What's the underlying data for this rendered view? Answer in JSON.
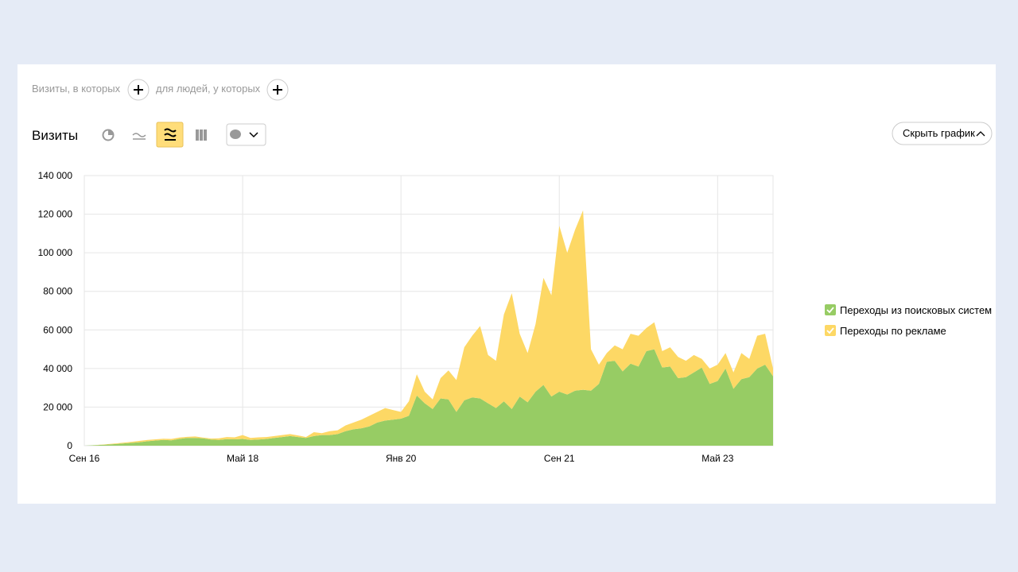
{
  "filters": {
    "visits_condition": "Визиты, в которых",
    "people_condition": "для людей, у которых"
  },
  "toolbar": {
    "title": "Визиты",
    "hide_button": "Скрыть график"
  },
  "chart_data": {
    "type": "stacked_area",
    "categories": [
      "Сен 16",
      null,
      null,
      null,
      null,
      null,
      null,
      null,
      null,
      null,
      null,
      null,
      null,
      null,
      null,
      null,
      null,
      null,
      null,
      null,
      "Май 18",
      null,
      null,
      null,
      null,
      null,
      null,
      null,
      null,
      null,
      null,
      null,
      null,
      null,
      null,
      null,
      null,
      null,
      null,
      null,
      "Янв 20",
      null,
      null,
      null,
      null,
      null,
      null,
      null,
      null,
      null,
      null,
      null,
      null,
      null,
      null,
      null,
      null,
      null,
      null,
      null,
      "Сен 21",
      null,
      null,
      null,
      null,
      null,
      null,
      null,
      null,
      null,
      null,
      null,
      null,
      null,
      null,
      null,
      null,
      null,
      null,
      null,
      "Май 23",
      null,
      null,
      null,
      null,
      null,
      null,
      null
    ],
    "series": [
      {
        "name": "Переходы из поисковых систем",
        "color": "#97cc64",
        "values": [
          0,
          200,
          400,
          600,
          900,
          1200,
          1500,
          1800,
          2300,
          2700,
          3000,
          2800,
          3500,
          4000,
          4000,
          3800,
          3200,
          3000,
          3400,
          3300,
          3500,
          3000,
          3200,
          3500,
          4000,
          4500,
          5000,
          4500,
          4000,
          5000,
          5500,
          5500,
          6000,
          7500,
          8500,
          9000,
          10000,
          12000,
          13000,
          13500,
          14000,
          15500,
          26000,
          22000,
          19000,
          24500,
          24000,
          17500,
          23500,
          25000,
          24500,
          22000,
          19500,
          23000,
          19000,
          25500,
          22500,
          28000,
          31500,
          25500,
          28000,
          26500,
          28500,
          29000,
          28500,
          32000,
          43500,
          44000,
          38500,
          42500,
          41000,
          49000,
          50000,
          40500,
          41000,
          35000,
          35500,
          38000,
          40500,
          32000,
          33500,
          40000,
          29500,
          34500,
          35500,
          40000,
          42000,
          36000
        ]
      },
      {
        "name": "Переходы по рекламе",
        "color": "#fdd865",
        "values": [
          0,
          0,
          100,
          200,
          300,
          400,
          500,
          700,
          700,
          600,
          600,
          700,
          700,
          600,
          800,
          400,
          500,
          800,
          1100,
          1000,
          2000,
          1000,
          1100,
          1000,
          1000,
          1000,
          1000,
          800,
          500,
          2000,
          1000,
          2000,
          2000,
          3000,
          3500,
          4500,
          5500,
          5500,
          6500,
          5000,
          3500,
          7500,
          11000,
          6000,
          5000,
          10500,
          15000,
          16500,
          27500,
          32000,
          37500,
          25000,
          24500,
          45000,
          60000,
          32500,
          25500,
          35000,
          55500,
          52500,
          86000,
          73500,
          83500,
          93000,
          21500,
          10000,
          4500,
          8000,
          11500,
          15500,
          16000,
          12000,
          14000,
          8500,
          10000,
          11000,
          8500,
          9000,
          4500,
          8000,
          8500,
          8000,
          8500,
          13500,
          9500,
          17000,
          16000,
          4000
        ]
      }
    ],
    "ylim": [
      0,
      140000
    ],
    "yticks": [
      0,
      {
        "value": 20000,
        "label": "20 000"
      },
      {
        "value": 40000,
        "label": "40 000"
      },
      {
        "value": 60000,
        "label": "60 000"
      },
      {
        "value": 80000,
        "label": "80 000"
      },
      {
        "value": 100000,
        "label": "100 000"
      },
      {
        "value": 120000,
        "label": "120 000"
      },
      {
        "value": 140000,
        "label": "140 000"
      }
    ],
    "grid": true
  }
}
